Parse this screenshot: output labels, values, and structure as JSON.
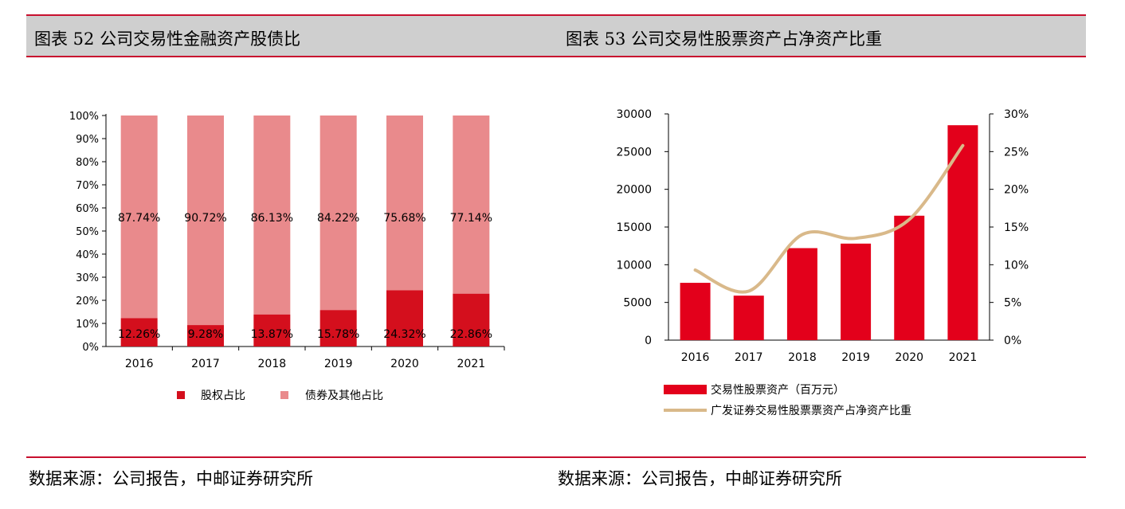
{
  "left": {
    "title": "图表 52 公司交易性金融资产股债比",
    "source": "数据来源：公司报告，中邮证券研究所"
  },
  "right": {
    "title": "图表 53 公司交易性股票资产占净资产比重",
    "source": "数据来源：公司报告，中邮证券研究所"
  },
  "chart_data": [
    {
      "type": "bar",
      "stacked": true,
      "categories": [
        "2016",
        "2017",
        "2018",
        "2019",
        "2020",
        "2021"
      ],
      "series": [
        {
          "name": "股权占比",
          "values": [
            12.26,
            9.28,
            13.87,
            15.78,
            24.32,
            22.86
          ],
          "labels": [
            "12.26%",
            "9.28%",
            "13.87%",
            "15.78%",
            "24.32%",
            "22.86%"
          ],
          "color": "#d40f1d"
        },
        {
          "name": "债券及其他占比",
          "values": [
            87.74,
            90.72,
            86.13,
            84.22,
            75.68,
            77.14
          ],
          "labels": [
            "87.74%",
            "90.72%",
            "86.13%",
            "84.22%",
            "75.68%",
            "77.14%"
          ],
          "color": "#e98a8c"
        }
      ],
      "ylim": [
        0,
        100
      ],
      "yticks": [
        "0%",
        "10%",
        "20%",
        "30%",
        "40%",
        "50%",
        "60%",
        "70%",
        "80%",
        "90%",
        "100%"
      ],
      "legend": "bottom"
    },
    {
      "type": "bar+line",
      "categories": [
        "2016",
        "2017",
        "2018",
        "2019",
        "2020",
        "2021"
      ],
      "series": [
        {
          "name": "交易性股票资产（百万元）",
          "type": "bar",
          "axis": "left",
          "values": [
            7600,
            5900,
            12200,
            12800,
            16500,
            28500
          ],
          "color": "#e3001b"
        },
        {
          "name": "广发证券交易性股票票资产占净资产比重",
          "type": "line",
          "axis": "right",
          "values": [
            9.3,
            6.5,
            14.0,
            13.5,
            16.0,
            25.8
          ],
          "color": "#d9b98a"
        }
      ],
      "ylim_left": [
        0,
        30000
      ],
      "yticks_left": [
        "0",
        "5000",
        "10000",
        "15000",
        "20000",
        "25000",
        "30000"
      ],
      "ylim_right": [
        0,
        30
      ],
      "yticks_right": [
        "0%",
        "5%",
        "10%",
        "15%",
        "20%",
        "25%",
        "30%"
      ],
      "legend": "bottom"
    }
  ]
}
